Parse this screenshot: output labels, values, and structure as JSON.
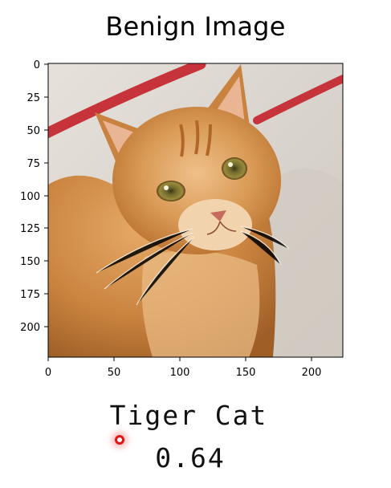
{
  "figure": {
    "title": "Benign Image",
    "image_description_icon": "orange-tabby-cat-photo",
    "x_ticks": [
      "0",
      "50",
      "100",
      "150",
      "200"
    ],
    "y_ticks": [
      "0",
      "25",
      "50",
      "75",
      "100",
      "125",
      "150",
      "175",
      "200"
    ],
    "x_range": [
      0,
      224
    ],
    "y_range": [
      0,
      224
    ]
  },
  "prediction": {
    "label": "Tiger Cat",
    "score": "0.64"
  },
  "colors": {
    "cursor": "#e01616",
    "stripe": "#c7333a",
    "fur": "#d99a55"
  }
}
